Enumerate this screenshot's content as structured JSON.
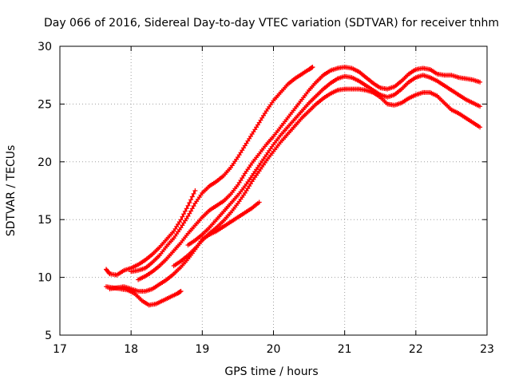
{
  "chart_data": {
    "type": "line",
    "title": "Day 066 of 2016, Sidereal Day-to-day VTEC variation (SDTVAR) for receiver tnhm",
    "xlabel": "GPS time / hours",
    "ylabel": "SDTVAR / TECUs",
    "xlim": [
      17,
      23
    ],
    "ylim": [
      5,
      30
    ],
    "xticks": [
      17,
      18,
      19,
      20,
      21,
      22,
      23
    ],
    "yticks": [
      5,
      10,
      15,
      20,
      25,
      30
    ],
    "xtick_labels": [
      "17",
      "18",
      "19",
      "20",
      "21",
      "22",
      "23"
    ],
    "ytick_labels": [
      "5",
      "10",
      "15",
      "20",
      "25",
      "30"
    ],
    "grid": true,
    "legend": "none",
    "marker": "+",
    "color": "#ff0000",
    "series": [
      {
        "name": "series-1",
        "x": [
          17.65,
          17.75,
          17.85,
          17.95,
          18.05,
          18.15,
          18.25,
          18.35,
          18.45,
          18.55,
          18.65,
          18.7
        ],
        "y": [
          9.2,
          9.1,
          9.0,
          8.9,
          8.6,
          8.0,
          7.6,
          7.7,
          8.0,
          8.3,
          8.6,
          8.8
        ]
      },
      {
        "name": "series-2",
        "x": [
          17.65,
          17.7,
          17.8,
          17.9,
          18.0,
          18.1,
          18.2,
          18.3,
          18.4,
          18.5,
          18.6,
          18.7,
          18.8,
          18.9
        ],
        "y": [
          10.7,
          10.3,
          10.2,
          10.6,
          10.8,
          11.1,
          11.5,
          12.0,
          12.6,
          13.3,
          14.0,
          15.0,
          16.2,
          17.5
        ]
      },
      {
        "name": "series-3",
        "x": [
          17.7,
          17.8,
          17.9,
          18.0,
          18.1,
          18.2,
          18.3,
          18.4,
          18.5,
          18.6,
          18.7,
          18.8,
          18.9,
          19.0,
          19.1,
          19.2,
          19.3,
          19.4,
          19.5,
          19.6,
          19.7,
          19.8
        ],
        "y": [
          9.0,
          9.1,
          9.2,
          9.0,
          8.8,
          8.8,
          9.0,
          9.4,
          9.8,
          10.3,
          10.9,
          11.6,
          12.4,
          13.3,
          13.7,
          14.0,
          14.4,
          14.8,
          15.2,
          15.6,
          16.0,
          16.5
        ]
      },
      {
        "name": "series-4",
        "x": [
          18.0,
          18.1,
          18.2,
          18.3,
          18.4,
          18.5,
          18.6,
          18.7,
          18.8,
          18.9,
          19.0,
          19.1,
          19.2,
          19.3,
          19.4,
          19.5,
          19.6,
          19.7,
          19.8,
          19.9,
          20.0,
          20.1,
          20.2,
          20.3,
          20.4,
          20.5,
          20.55
        ],
        "y": [
          10.5,
          10.6,
          10.8,
          11.3,
          11.9,
          12.7,
          13.4,
          14.3,
          15.3,
          16.4,
          17.3,
          17.9,
          18.3,
          18.8,
          19.5,
          20.4,
          21.4,
          22.4,
          23.4,
          24.4,
          25.3,
          26.0,
          26.7,
          27.2,
          27.6,
          28.0,
          28.2
        ]
      },
      {
        "name": "series-5",
        "x": [
          18.1,
          18.2,
          18.3,
          18.4,
          18.5,
          18.6,
          18.7,
          18.8,
          18.9,
          19.0,
          19.1,
          19.2,
          19.3,
          19.4,
          19.5,
          19.6,
          19.7,
          19.8,
          19.9,
          20.0,
          20.1,
          20.2,
          20.3,
          20.4,
          20.5,
          20.6,
          20.7,
          20.8,
          20.9,
          21.0,
          21.1,
          21.2,
          21.3,
          21.4,
          21.5,
          21.6,
          21.7,
          21.8,
          21.9,
          22.0,
          22.1,
          22.2,
          22.3,
          22.4,
          22.5,
          22.6,
          22.7,
          22.8,
          22.9
        ],
        "y": [
          9.8,
          10.1,
          10.5,
          11.0,
          11.6,
          12.3,
          13.0,
          13.8,
          14.5,
          15.2,
          15.8,
          16.2,
          16.6,
          17.2,
          18.0,
          19.0,
          19.9,
          20.7,
          21.5,
          22.2,
          23.0,
          23.8,
          24.6,
          25.4,
          26.2,
          26.9,
          27.5,
          27.9,
          28.1,
          28.2,
          28.1,
          27.8,
          27.3,
          26.8,
          26.4,
          26.3,
          26.5,
          27.0,
          27.6,
          28.0,
          28.1,
          28.0,
          27.6,
          27.5,
          27.5,
          27.3,
          27.2,
          27.1,
          26.9
        ]
      },
      {
        "name": "series-6",
        "x": [
          18.8,
          18.9,
          19.0,
          19.1,
          19.2,
          19.3,
          19.4,
          19.5,
          19.6,
          19.7,
          19.8,
          19.9,
          20.0,
          20.1,
          20.2,
          20.3,
          20.4,
          20.5,
          20.6,
          20.7,
          20.8,
          20.9,
          21.0,
          21.1,
          21.2,
          21.3,
          21.4,
          21.5,
          21.6,
          21.7,
          21.8,
          21.9,
          22.0,
          22.1,
          22.2,
          22.3,
          22.4,
          22.5,
          22.6,
          22.7,
          22.8,
          22.9
        ],
        "y": [
          12.8,
          13.2,
          13.7,
          14.3,
          15.0,
          15.7,
          16.4,
          17.1,
          17.9,
          18.8,
          19.7,
          20.6,
          21.5,
          22.3,
          23.0,
          23.7,
          24.4,
          25.1,
          25.7,
          26.3,
          26.8,
          27.2,
          27.4,
          27.3,
          27.0,
          26.6,
          26.2,
          25.8,
          25.6,
          25.8,
          26.3,
          26.9,
          27.3,
          27.5,
          27.3,
          27.0,
          26.6,
          26.2,
          25.8,
          25.4,
          25.1,
          24.8
        ]
      },
      {
        "name": "series-7",
        "x": [
          18.6,
          18.7,
          18.8,
          18.9,
          19.0,
          19.1,
          19.2,
          19.3,
          19.4,
          19.5,
          19.6,
          19.7,
          19.8,
          19.9,
          20.0,
          20.1,
          20.2,
          20.3,
          20.4,
          20.5,
          20.6,
          20.7,
          20.8,
          20.9,
          21.0,
          21.1,
          21.2,
          21.3,
          21.4,
          21.5,
          21.6,
          21.7,
          21.8,
          21.9,
          22.0,
          22.1,
          22.2,
          22.3,
          22.4,
          22.5,
          22.6,
          22.7,
          22.8,
          22.9
        ],
        "y": [
          11.0,
          11.4,
          11.9,
          12.5,
          13.2,
          13.8,
          14.3,
          14.9,
          15.6,
          16.4,
          17.3,
          18.3,
          19.2,
          20.1,
          20.9,
          21.7,
          22.4,
          23.1,
          23.8,
          24.4,
          25.0,
          25.5,
          25.9,
          26.2,
          26.3,
          26.3,
          26.3,
          26.2,
          26.0,
          25.6,
          25.0,
          24.9,
          25.1,
          25.5,
          25.8,
          26.0,
          26.0,
          25.7,
          25.1,
          24.5,
          24.2,
          23.8,
          23.4,
          23.0
        ]
      }
    ]
  }
}
